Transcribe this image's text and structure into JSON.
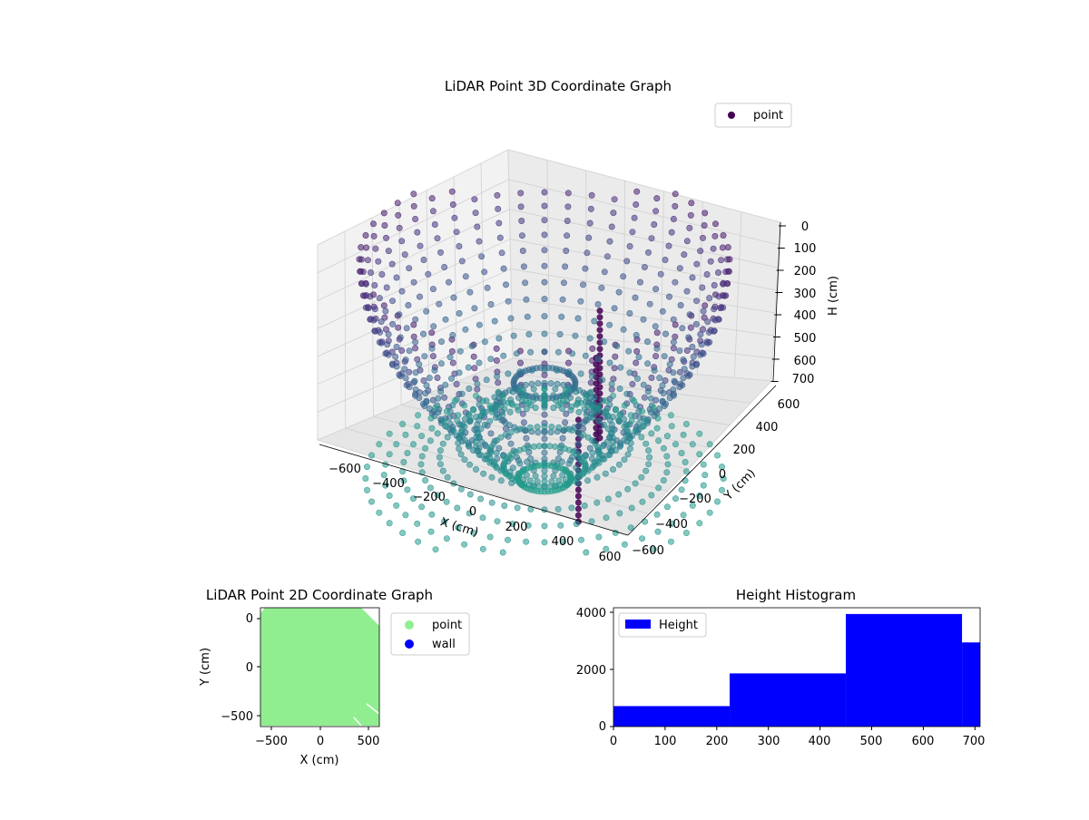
{
  "chart_data": [
    {
      "type": "scatter",
      "title": "LiDAR Point 3D Coordinate Graph",
      "xlabel": "X (cm)",
      "ylabel": "Y (cm)",
      "zlabel": "H (cm)",
      "legend": [
        "point"
      ],
      "legend_position": "top-right",
      "xticks": [
        "−600",
        "−400",
        "−200",
        "0",
        "200",
        "400",
        "600"
      ],
      "yticks": [
        "−600",
        "−400",
        "−200",
        "0",
        "200",
        "400",
        "600"
      ],
      "zticks": [
        "0",
        "100",
        "200",
        "300",
        "400",
        "500",
        "600",
        "700"
      ],
      "xlim": [
        -650,
        650
      ],
      "ylim": [
        -650,
        650
      ],
      "zlim": [
        0,
        720
      ],
      "zaxis_inverted": true,
      "colormap": "viridis",
      "marker_color": "#440154",
      "grid": true,
      "series": [
        {
          "name": "point",
          "rings_radius_cm": [
            580,
            520,
            460,
            400,
            340,
            280,
            220,
            160,
            100
          ],
          "ring_height_cm": [
            700,
            690,
            680,
            660,
            640,
            600,
            560,
            500,
            430
          ],
          "arc_crest_height_cm": 80,
          "points_per_ring": 48,
          "shape": "hemispherical dome of rays, rim near H≈50–100, floor near H≈700",
          "poles": [
            {
              "x": 220,
              "y": 80,
              "h_top": 160,
              "h_bottom": 520
            },
            {
              "x": 300,
              "y": 20,
              "h_top": 250,
              "h_bottom": 500
            },
            {
              "x": 480,
              "y": -150,
              "h_top": 320,
              "h_bottom": 620
            }
          ]
        }
      ]
    },
    {
      "type": "scatter",
      "title": "LiDAR Point 2D Coordinate Graph",
      "xlabel": "X (cm)",
      "ylabel": "Y (cm)",
      "xticks": [
        "−500",
        "0",
        "500"
      ],
      "yticks": [
        "−500",
        "0",
        "500"
      ],
      "xlim": [
        -620,
        620
      ],
      "ylim": [
        -620,
        620
      ],
      "legend": [
        "point",
        "wall"
      ],
      "legend_position": "outside-right",
      "series": [
        {
          "name": "point",
          "color": "#90ee90",
          "region": "filled square, x −600…600, y −600…600"
        },
        {
          "name": "wall",
          "color": "#0000ff"
        }
      ]
    },
    {
      "type": "bar",
      "title": "Height Histogram",
      "legend": [
        "Height"
      ],
      "legend_position": "top-left",
      "color": "#0000ff",
      "bins": [
        {
          "start": 0,
          "end": 225,
          "count": 720
        },
        {
          "start": 225,
          "end": 450,
          "count": 1870
        },
        {
          "start": 450,
          "end": 675,
          "count": 3960
        },
        {
          "start": 675,
          "end": 710,
          "count": 2960
        }
      ],
      "xticks": [
        "0",
        "100",
        "200",
        "300",
        "400",
        "500",
        "600",
        "700"
      ],
      "yticks": [
        "0",
        "2000",
        "4000"
      ],
      "xlim": [
        0,
        710
      ],
      "ylim": [
        0,
        4180
      ]
    }
  ]
}
